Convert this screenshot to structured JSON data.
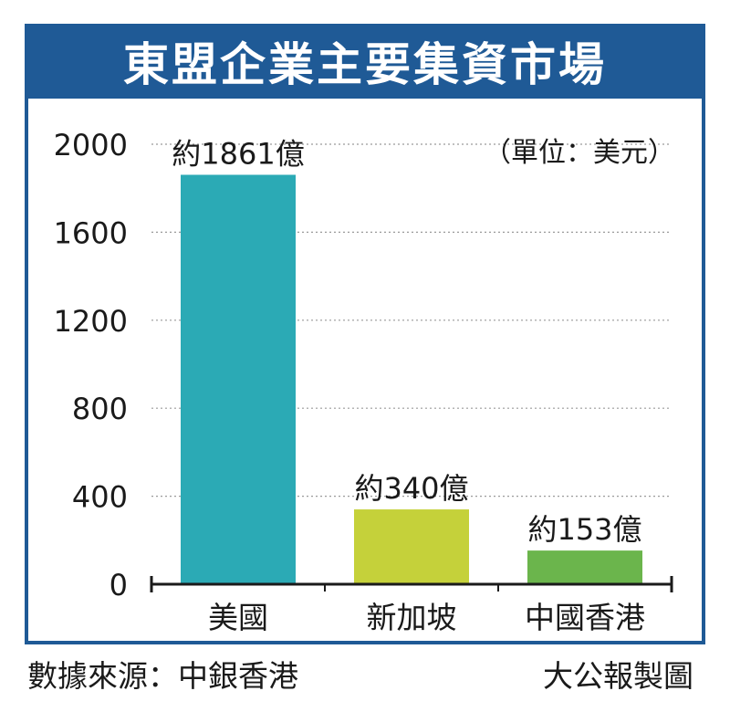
{
  "title": "東盟企業主要集資市場",
  "unit_label": "（單位：美元）",
  "footer": {
    "source": "數據來源：中銀香港",
    "credit": "大公報製圖"
  },
  "chart_data": {
    "type": "bar",
    "title": "東盟企業主要集資市場",
    "categories": [
      "美國",
      "新加坡",
      "中國香港"
    ],
    "values": [
      1861,
      340,
      153
    ],
    "data_labels": [
      "約1861億",
      "約340億",
      "約153億"
    ],
    "bar_colors": [
      "#2baab5",
      "#c5d13a",
      "#6bb54c"
    ],
    "unit": "（單位：美元）",
    "yticks": [
      0,
      400,
      800,
      1200,
      1600,
      2000
    ],
    "ylim": [
      0,
      2000
    ],
    "grid": true,
    "grid_style": "dotted",
    "xlabel": "",
    "ylabel": ""
  }
}
